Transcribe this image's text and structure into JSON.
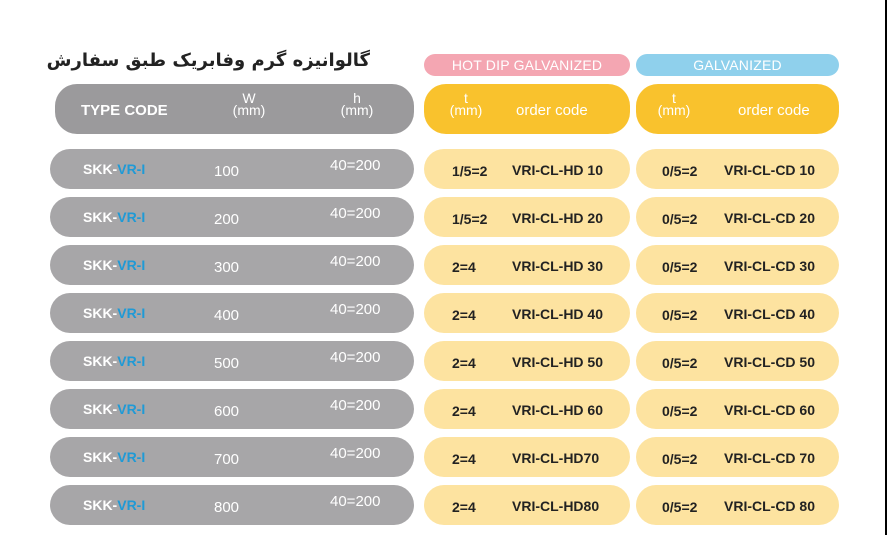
{
  "title": "گالوانیزه گرم وفابریک طبق سفارش",
  "hot_dip_label": "HOT DIP GALVANIZED",
  "galvanized_label": "GALVANIZED",
  "header": {
    "type_code": "TYPE CODE",
    "w": "W",
    "h": "h",
    "t": "t",
    "unit": "(mm)",
    "order_code": "order code"
  },
  "rows": [
    {
      "code_prefix": "SKK-",
      "code_suffix": "VR-I",
      "w": "100",
      "h": "40=200",
      "hd_t": "1/5=2",
      "hd_code": "VRI-CL-HD 10",
      "cd_t": "0/5=2",
      "cd_code": "VRI-CL-CD 10"
    },
    {
      "code_prefix": "SKK-",
      "code_suffix": "VR-I",
      "w": "200",
      "h": "40=200",
      "hd_t": "1/5=2",
      "hd_code": "VRI-CL-HD 20",
      "cd_t": "0/5=2",
      "cd_code": "VRI-CL-CD 20"
    },
    {
      "code_prefix": "SKK-",
      "code_suffix": "VR-I",
      "w": "300",
      "h": "40=200",
      "hd_t": "2=4",
      "hd_code": "VRI-CL-HD 30",
      "cd_t": "0/5=2",
      "cd_code": "VRI-CL-CD 30"
    },
    {
      "code_prefix": "SKK-",
      "code_suffix": "VR-I",
      "w": "400",
      "h": "40=200",
      "hd_t": "2=4",
      "hd_code": "VRI-CL-HD 40",
      "cd_t": "0/5=2",
      "cd_code": "VRI-CL-CD 40"
    },
    {
      "code_prefix": "SKK-",
      "code_suffix": "VR-I",
      "w": "500",
      "h": "40=200",
      "hd_t": "2=4",
      "hd_code": "VRI-CL-HD 50",
      "cd_t": "0/5=2",
      "cd_code": "VRI-CL-CD 50"
    },
    {
      "code_prefix": "SKK-",
      "code_suffix": "VR-I",
      "w": "600",
      "h": "40=200",
      "hd_t": "2=4",
      "hd_code": "VRI-CL-HD 60",
      "cd_t": "0/5=2",
      "cd_code": "VRI-CL-CD 60"
    },
    {
      "code_prefix": "SKK-",
      "code_suffix": "VR-I",
      "w": "700",
      "h": "40=200",
      "hd_t": "2=4",
      "hd_code": "VRI-CL-HD70",
      "cd_t": "0/5=2",
      "cd_code": "VRI-CL-CD 70"
    },
    {
      "code_prefix": "SKK-",
      "code_suffix": "VR-I",
      "w": "800",
      "h": "40=200",
      "hd_t": "2=4",
      "hd_code": "VRI-CL-HD80",
      "cd_t": "0/5=2",
      "cd_code": "VRI-CL-CD 80"
    }
  ]
}
